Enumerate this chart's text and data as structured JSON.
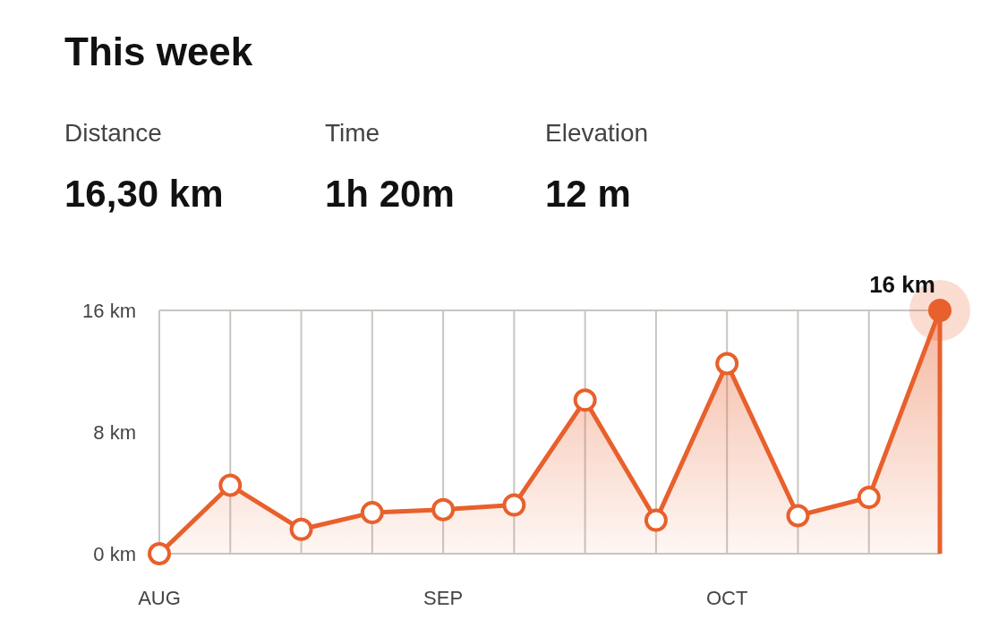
{
  "chart_data": {
    "type": "area",
    "title": "This week",
    "annotations": [
      "Distance",
      "16,30 km",
      "Time",
      "1h 20m",
      "Elevation",
      "12 m"
    ],
    "categories": [
      "AUG",
      null,
      null,
      null,
      "SEP",
      null,
      null,
      null,
      "OCT",
      null,
      null,
      null
    ],
    "values": [
      0,
      4.5,
      1.6,
      2.7,
      2.9,
      3.2,
      10.1,
      2.2,
      12.5,
      2.5,
      3.7,
      16
    ],
    "value_labels": [
      null,
      null,
      null,
      null,
      null,
      null,
      null,
      null,
      null,
      null,
      null,
      "16 km"
    ],
    "color": "#e8602c",
    "ylim": [
      0,
      16
    ],
    "yticks": [
      {
        "value": 0,
        "label": "0 km"
      },
      {
        "value": 8,
        "label": "8 km"
      },
      {
        "value": 16,
        "label": "16 km"
      }
    ],
    "grid": "x",
    "marker": "circle",
    "line_style": "solid"
  }
}
